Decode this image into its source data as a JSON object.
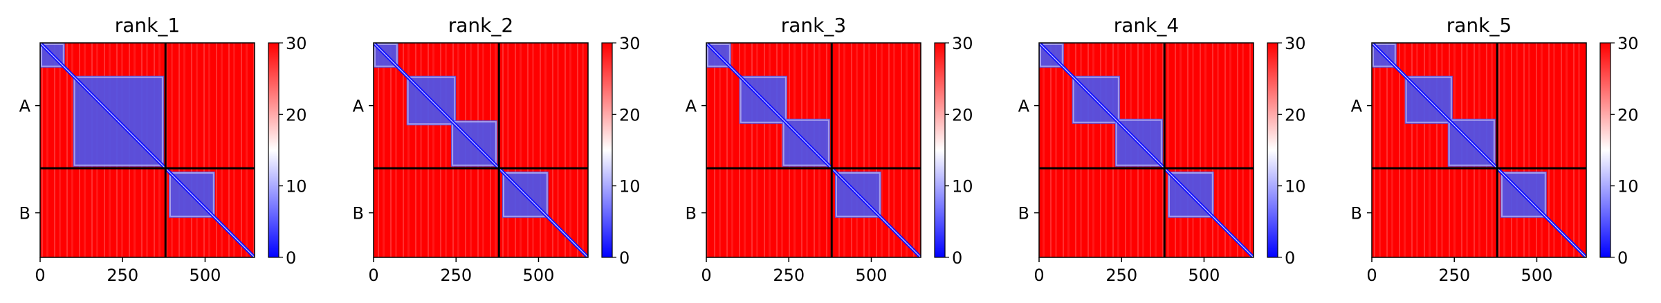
{
  "chart_data": {
    "type": "heatmap",
    "description_colormap": "bwr",
    "colors": {
      "low": "#0000ff",
      "mid": "#ffffff",
      "high": "#ff0000",
      "separator": "#000000"
    },
    "color_range": [
      0,
      30
    ],
    "colorbar_ticks": [
      "0",
      "10",
      "20",
      "30"
    ],
    "x_ticks": [
      0,
      250,
      500
    ],
    "x_range": [
      0,
      650
    ],
    "chain_boundary": 380,
    "chain_labels": [
      "A",
      "B"
    ],
    "chain_label_positions": [
      190,
      515
    ],
    "panels": [
      {
        "title": "rank_1",
        "domainsA": [
          [
            0,
            75
          ],
          [
            100,
            375
          ]
        ],
        "domainsB": [
          [
            390,
            530
          ]
        ]
      },
      {
        "title": "rank_2",
        "domainsA": [
          [
            0,
            75
          ],
          [
            100,
            250
          ],
          [
            235,
            375
          ]
        ],
        "domainsB": [
          [
            390,
            530
          ]
        ]
      },
      {
        "title": "rank_3",
        "domainsA": [
          [
            0,
            75
          ],
          [
            100,
            245
          ],
          [
            230,
            375
          ]
        ],
        "domainsB": [
          [
            390,
            530
          ]
        ]
      },
      {
        "title": "rank_4",
        "domainsA": [
          [
            0,
            75
          ],
          [
            100,
            245
          ],
          [
            230,
            375
          ]
        ],
        "domainsB": [
          [
            390,
            530
          ]
        ]
      },
      {
        "title": "rank_5",
        "domainsA": [
          [
            0,
            75
          ],
          [
            100,
            245
          ],
          [
            230,
            375
          ]
        ],
        "domainsB": [
          [
            390,
            530
          ]
        ]
      }
    ]
  }
}
